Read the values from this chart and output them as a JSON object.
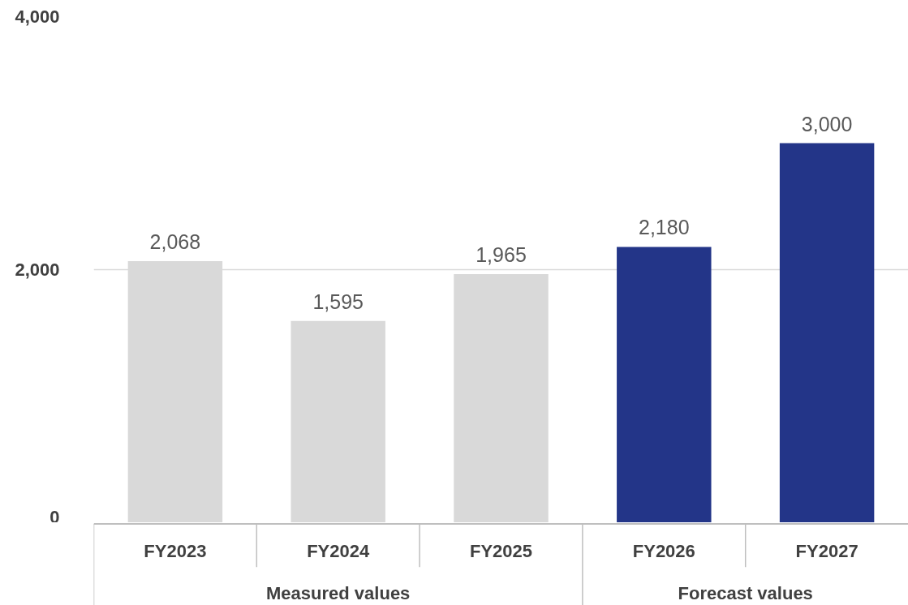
{
  "chart_data": {
    "type": "bar",
    "stacked": true,
    "categories": [
      "FY2023",
      "FY2024",
      "FY2025",
      "FY2026",
      "FY2027"
    ],
    "series": [
      {
        "color": "#d9d9d9",
        "values": [
          2068,
          1595,
          1965,
          null,
          null
        ],
        "value_labels": [
          "2,068",
          "1,595",
          "1,965",
          null,
          null
        ]
      },
      {
        "color": "#233588",
        "values": [
          null,
          null,
          null,
          2180,
          3000
        ],
        "value_labels": [
          null,
          null,
          null,
          "2,180",
          "3,000"
        ]
      }
    ],
    "ylim": [
      0,
      4000
    ],
    "yticks": [
      0,
      {
        "value": 2000,
        "label": "2,000"
      },
      {
        "value": 4000,
        "label": "4,000"
      }
    ],
    "grid": "y",
    "annotations": [
      "Measured values",
      "Forecast values"
    ]
  }
}
